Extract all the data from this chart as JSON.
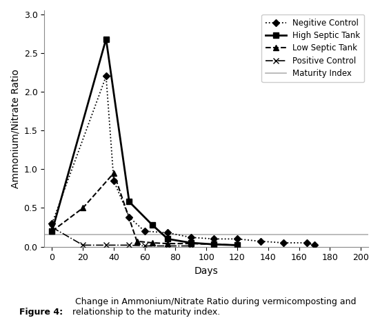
{
  "xlabel": "Days",
  "ylabel": "Ammonium/Nitrate Ratio",
  "xlim": [
    -5,
    205
  ],
  "ylim": [
    0,
    3.05
  ],
  "xticks": [
    0,
    20,
    40,
    60,
    80,
    100,
    120,
    140,
    160,
    180,
    200
  ],
  "yticks": [
    0.0,
    0.5,
    1.0,
    1.5,
    2.0,
    2.5,
    3.0
  ],
  "negative_control": {
    "x": [
      0,
      35,
      40,
      50,
      60,
      75,
      90,
      105,
      120,
      135,
      150,
      165,
      170
    ],
    "y": [
      0.3,
      2.2,
      0.85,
      0.38,
      0.2,
      0.18,
      0.12,
      0.1,
      0.1,
      0.07,
      0.05,
      0.05,
      0.02
    ],
    "label": "Negitive Control",
    "linestyle": "dotted",
    "marker": "D",
    "markersize": 5,
    "linewidth": 1.3
  },
  "high_septic": {
    "x": [
      0,
      35,
      50,
      65,
      75,
      90,
      105,
      120
    ],
    "y": [
      0.2,
      2.68,
      0.58,
      0.28,
      0.1,
      0.05,
      0.03,
      0.02
    ],
    "label": "High Septic Tank",
    "linestyle": "solid",
    "marker": "s",
    "markersize": 6,
    "linewidth": 2.0
  },
  "low_septic": {
    "x": [
      0,
      20,
      40,
      55,
      65,
      75,
      90,
      105,
      120
    ],
    "y": [
      0.2,
      0.5,
      0.95,
      0.07,
      0.05,
      0.04,
      0.04,
      0.03,
      0.02
    ],
    "label": "Low Septic Tank",
    "linestyle": "dashed",
    "marker": "^",
    "markersize": 6,
    "linewidth": 1.5
  },
  "positive_control": {
    "x": [
      0,
      20,
      35,
      50,
      60,
      75,
      90
    ],
    "y": [
      0.25,
      0.02,
      0.02,
      0.02,
      0.01,
      0.01,
      0.01
    ],
    "label": "Positive Control",
    "linestyle": "dashdot",
    "marker": "x",
    "markersize": 6,
    "linewidth": 1.2
  },
  "maturity_index": {
    "x": [
      -5,
      205
    ],
    "y": [
      0.16,
      0.16
    ],
    "label": "Maturity Index",
    "color": "#b0b0b0",
    "linestyle": "solid",
    "linewidth": 1.2
  },
  "figcaption_bold": "Figure 4:",
  "figcaption_normal": " Change in Ammonium/Nitrate Ratio during vermicomposting and\nrelationship to the maturity index.",
  "background_color": "#ffffff",
  "line_color": "#000000",
  "legend_fontsize": 8.5,
  "axis_fontsize": 10,
  "tick_fontsize": 9
}
